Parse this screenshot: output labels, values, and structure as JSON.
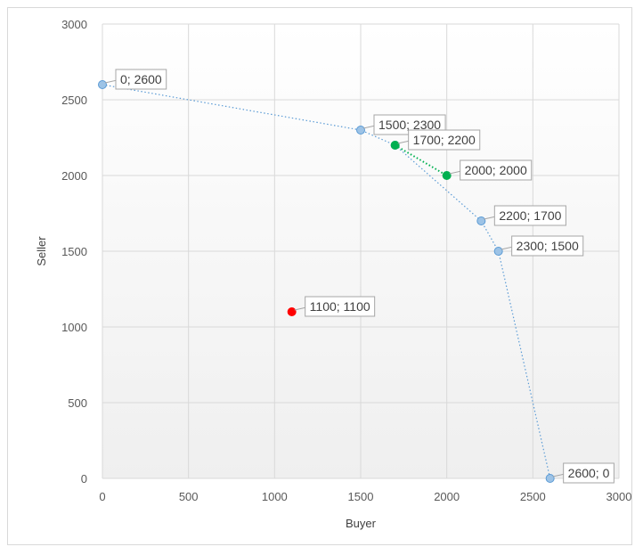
{
  "chart_data": {
    "type": "scatter",
    "title": "",
    "xlabel": "Buyer",
    "ylabel": "Seller",
    "xlim": [
      0,
      3000
    ],
    "ylim": [
      0,
      3000
    ],
    "xticks": [
      0,
      500,
      1000,
      1500,
      2000,
      2500,
      3000
    ],
    "yticks": [
      0,
      500,
      1000,
      1500,
      2000,
      2500,
      3000
    ],
    "grid": true,
    "legend": "none",
    "series": [
      {
        "color": "#9dc3e6",
        "stroke": "#5b9bd5",
        "line": "dotted",
        "points": [
          {
            "x": 0,
            "y": 2600,
            "label": "0; 2600"
          },
          {
            "x": 1500,
            "y": 2300,
            "label": "1500; 2300"
          },
          {
            "x": 1700,
            "y": 2200,
            "label": "1700; 2200"
          },
          {
            "x": 2200,
            "y": 1700,
            "label": "2200; 1700"
          },
          {
            "x": 2300,
            "y": 1500,
            "label": "2300; 1500"
          },
          {
            "x": 2600,
            "y": 0,
            "label": "2600; 0"
          }
        ]
      },
      {
        "color": "#00b050",
        "stroke": "#00b050",
        "line": "dotted",
        "points": [
          {
            "x": 1700,
            "y": 2200,
            "label": ""
          },
          {
            "x": 2000,
            "y": 2000,
            "label": "2000; 2000"
          }
        ]
      },
      {
        "color": "#ff0000",
        "stroke": "#ff0000",
        "line": "none",
        "points": [
          {
            "x": 1100,
            "y": 1100,
            "label": "1100; 1100"
          }
        ]
      }
    ]
  }
}
